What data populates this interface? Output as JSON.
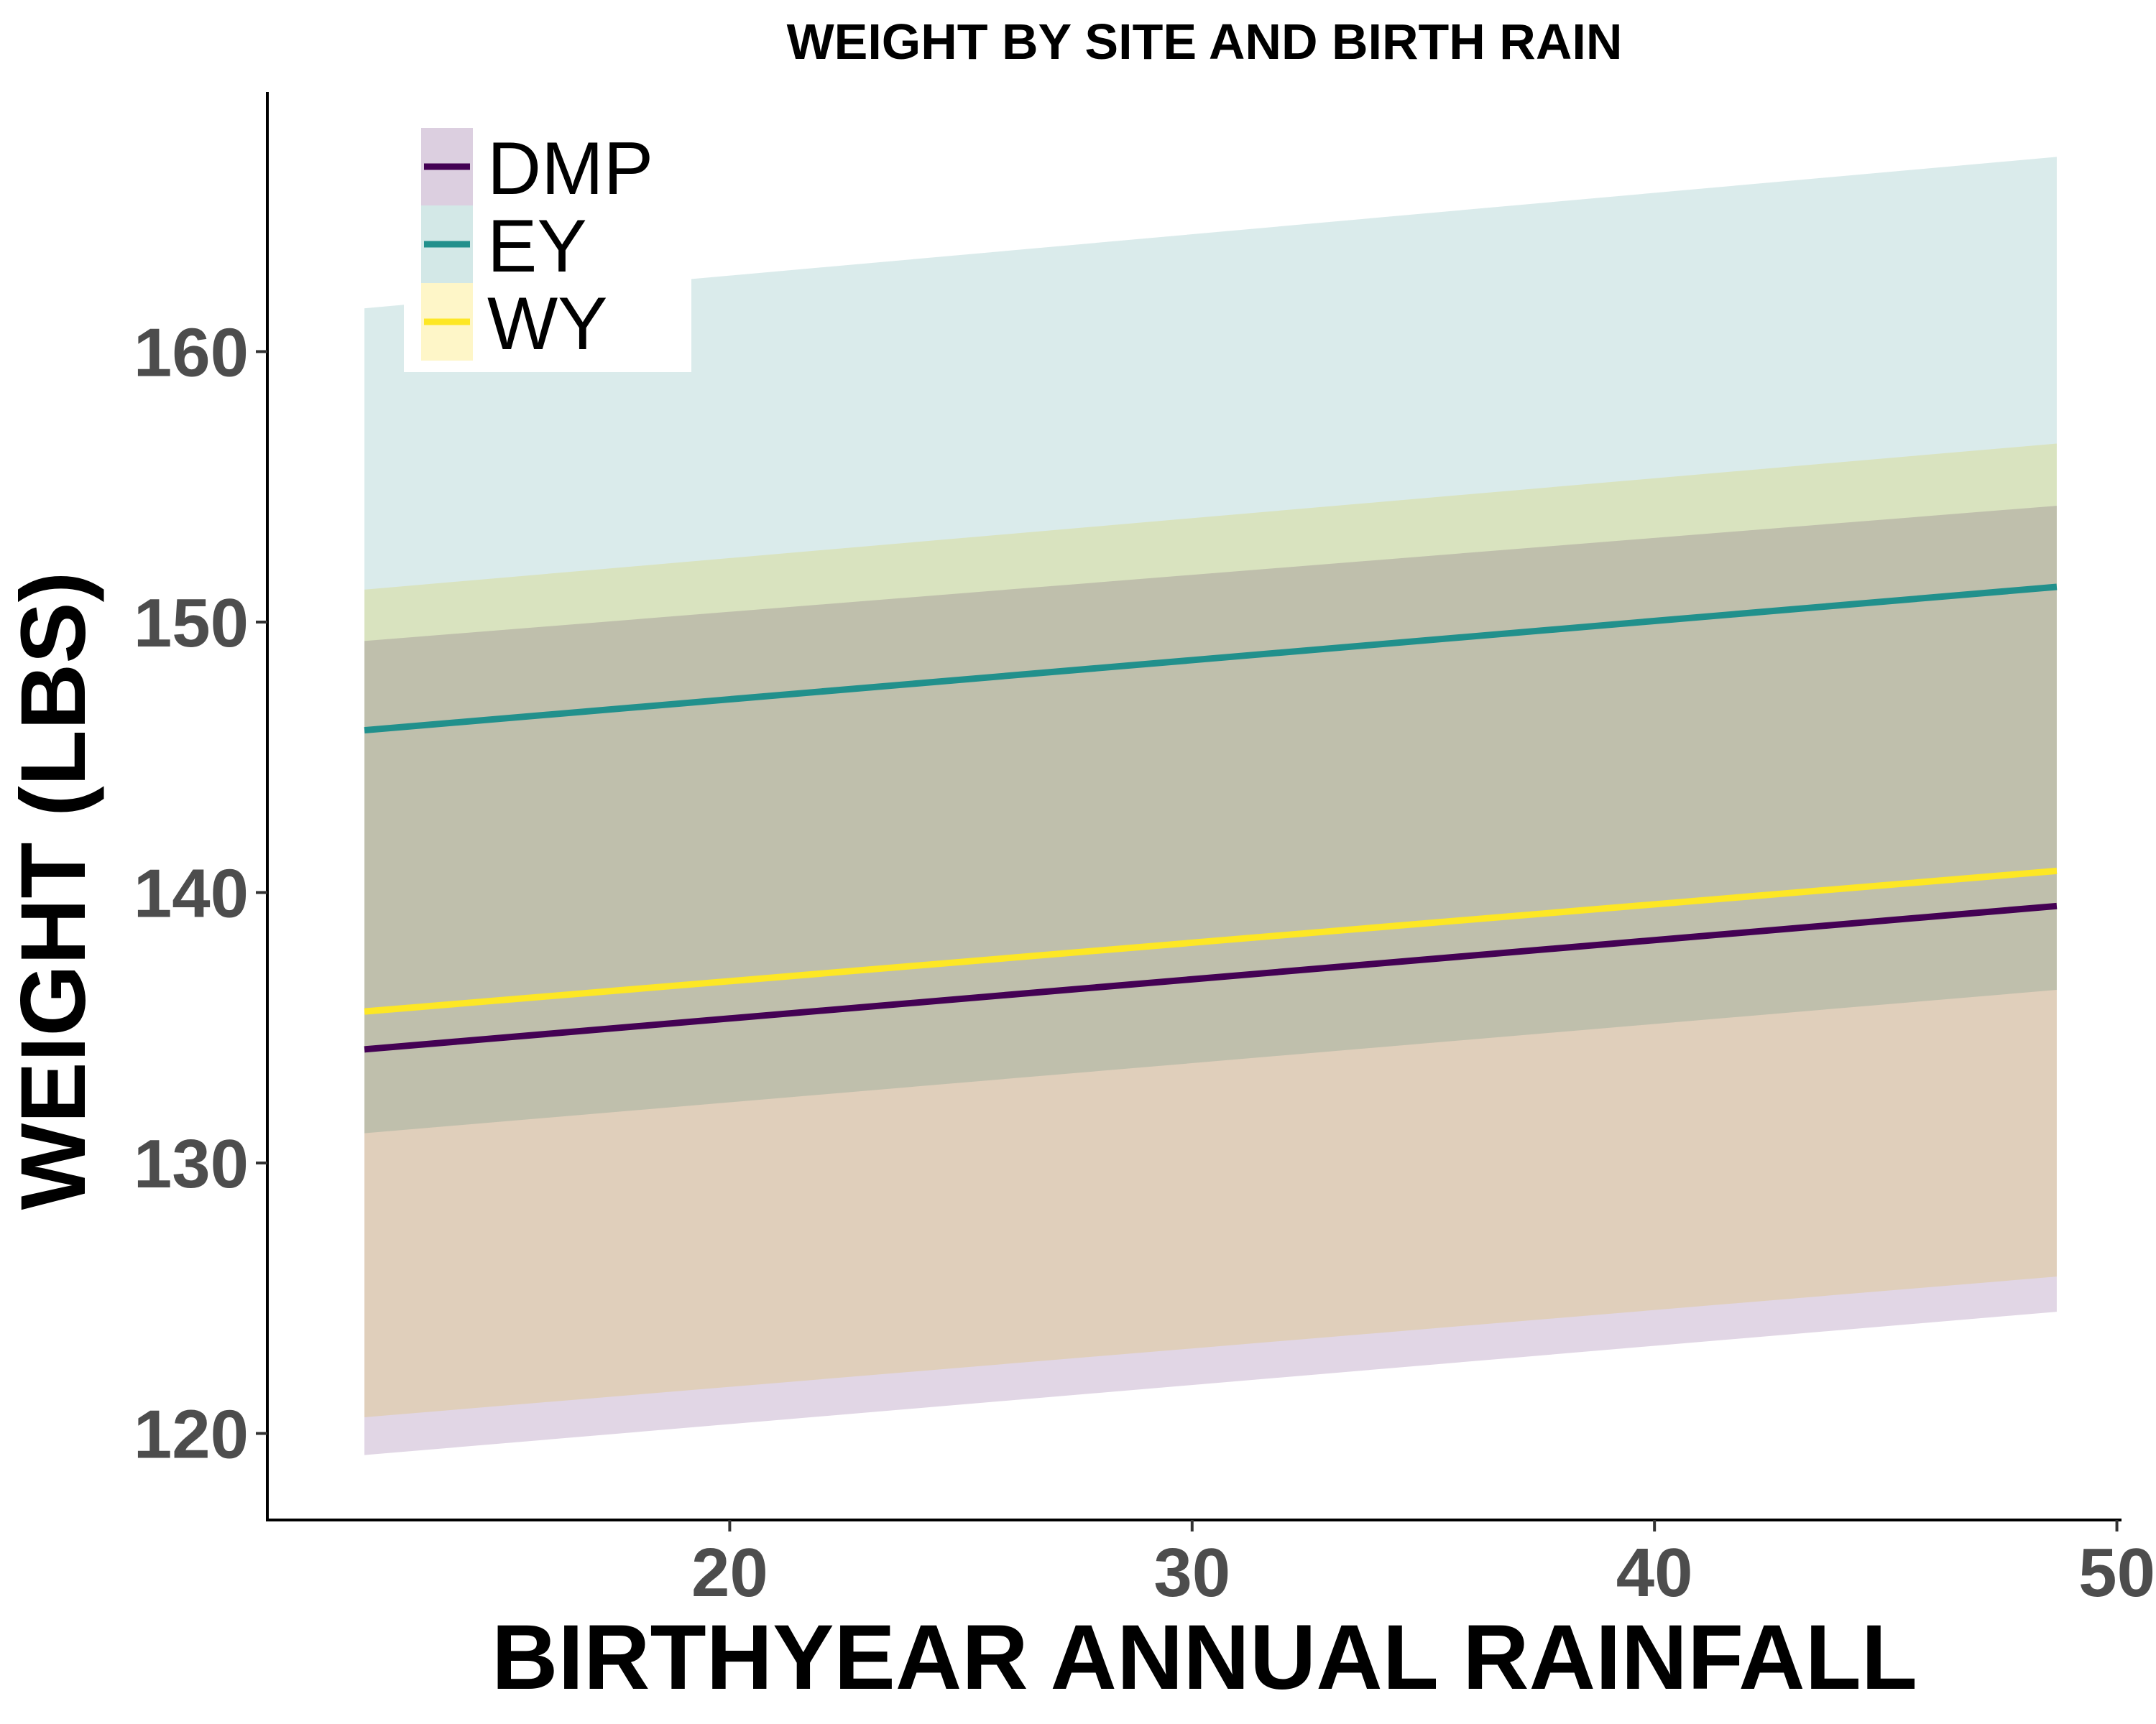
{
  "chart_data": {
    "type": "line",
    "title": "WEIGHT BY SITE AND BIRTH RAIN",
    "xlabel": "BIRTHYEAR ANNUAL RAINFALL",
    "ylabel": "WEIGHT (LBS)",
    "xlim": [
      10.0,
      50.1
    ],
    "ylim": [
      116.8,
      169.6
    ],
    "xticks": [
      20,
      30,
      40,
      50
    ],
    "yticks": [
      120,
      130,
      140,
      150,
      160
    ],
    "x": [
      12.1,
      48.7
    ],
    "grid": false,
    "legend_position": "top-left",
    "series": [
      {
        "name": "DMP",
        "color": "#440154",
        "fill": "#dccfe0",
        "values": [
          134.2,
          139.5
        ],
        "lower": [
          119.2,
          124.5
        ],
        "upper": [
          149.3,
          154.3
        ]
      },
      {
        "name": "EY",
        "color": "#21908c",
        "fill": "#d3e8e7",
        "values": [
          146.0,
          151.3
        ],
        "lower": [
          131.1,
          136.4
        ],
        "upper": [
          161.6,
          167.2
        ]
      },
      {
        "name": "WY",
        "color": "#fde725",
        "fill": "#fef6c8",
        "values": [
          135.6,
          140.8
        ],
        "lower": [
          120.6,
          125.8
        ],
        "upper": [
          151.2,
          156.6
        ]
      }
    ]
  }
}
